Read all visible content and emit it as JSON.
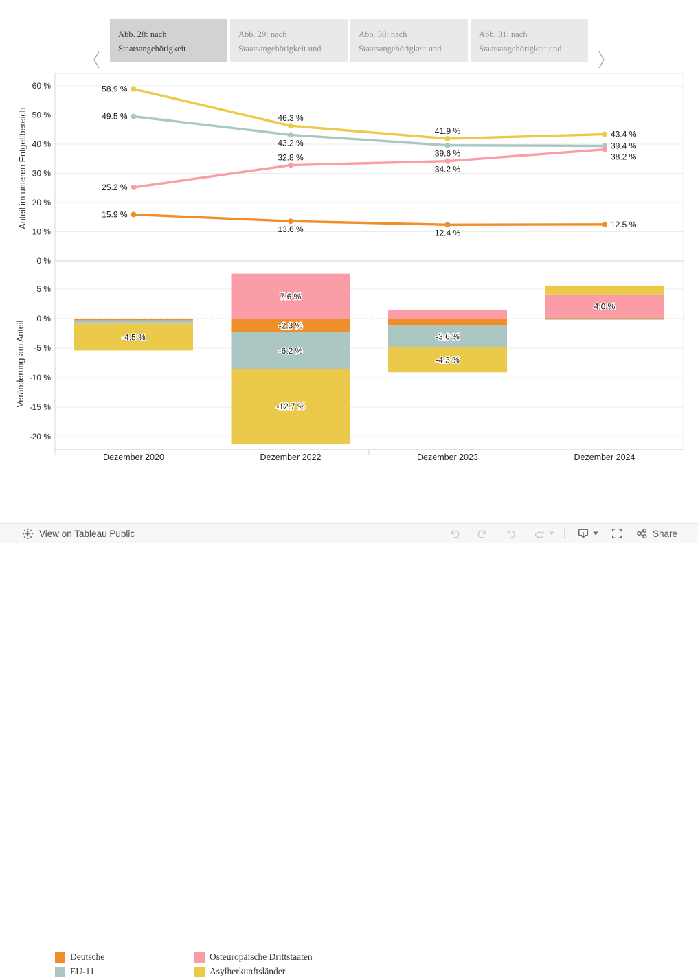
{
  "tabs": {
    "items": [
      {
        "line1": "Abb. 28: nach",
        "line2": "Staatsangehörigkeit",
        "active": true
      },
      {
        "line1": "Abb. 29: nach",
        "line2": "Staatsangehörigkeit und",
        "active": false
      },
      {
        "line1": "Abb. 30: nach",
        "line2": "Staatsangehörigkeit und",
        "active": false
      },
      {
        "line1": "Abb. 31: nach",
        "line2": "Staatsangehörigkeit und",
        "active": false
      }
    ]
  },
  "colors": {
    "deutsche": "#F08E2A",
    "eu11": "#ABC7C3",
    "osteuropaeische_drittstaaten": "#FA9DA6",
    "asylherkunftslaender": "#EBC94B",
    "active_tab_bg": "#d2d2d2",
    "inactive_tab_bg": "#e9e9e9"
  },
  "chart_data": [
    {
      "type": "line",
      "ylabel": "Anteil im unteren Entgeltbereich",
      "x": [
        "Dezember 2020",
        "Dezember 2022",
        "Dezember 2023",
        "Dezember 2024"
      ],
      "yticks": [
        0,
        10,
        20,
        30,
        40,
        50,
        60
      ],
      "ytick_suffix": " %",
      "ylim": [
        0,
        64
      ],
      "grid": true,
      "series": [
        {
          "name": "Deutsche",
          "color": "#F08E2A",
          "values": [
            15.9,
            13.6,
            12.4,
            12.5
          ],
          "labels": [
            "15.9 %",
            "13.6 %",
            "12.4 %",
            "12.5 %"
          ],
          "label_pos": [
            "left",
            "below",
            "below",
            "right"
          ]
        },
        {
          "name": "EU-11",
          "color": "#ABC7C3",
          "values": [
            49.5,
            43.2,
            39.6,
            39.4
          ],
          "labels": [
            "49.5 %",
            "43.2 %",
            "39.6 %",
            "39.4 %"
          ],
          "label_pos": [
            "left",
            "below",
            "below",
            "right"
          ]
        },
        {
          "name": "Osteuropäische Drittstaaten",
          "color": "#FA9DA6",
          "values": [
            25.2,
            32.8,
            34.2,
            38.2
          ],
          "labels": [
            "25.2 %",
            "32.8 %",
            "34.2 %",
            "38.2 %"
          ],
          "label_pos": [
            "left",
            "above",
            "below",
            "right-down"
          ]
        },
        {
          "name": "Asylherkunftsländer",
          "color": "#EBC94B",
          "values": [
            58.9,
            46.3,
            41.9,
            43.4
          ],
          "labels": [
            "58.9 %",
            "46.3 %",
            "41.9 %",
            "43.4 %"
          ],
          "label_pos": [
            "left",
            "above",
            "above",
            "right"
          ]
        }
      ]
    },
    {
      "type": "bar",
      "stacked": true,
      "ylabel": "Veränderung am Anteil",
      "categories": [
        "Dezember 2020",
        "Dezember 2022",
        "Dezember 2023",
        "Dezember 2024"
      ],
      "yticks": [
        5,
        0,
        -5,
        -10,
        -15,
        -20
      ],
      "ytick_suffix": " %",
      "ylim": [
        -22.5,
        8
      ],
      "zero_line": "dotted",
      "series": [
        {
          "name": "Deutsche",
          "color": "#F08E2A",
          "values": [
            -0.3,
            -2.3,
            -1.2,
            0.1
          ],
          "labels": [
            "",
            "-2.3 %",
            "",
            ""
          ]
        },
        {
          "name": "EU-11",
          "color": "#ABC7C3",
          "values": [
            -0.6,
            -6.2,
            -3.6,
            -0.2
          ],
          "labels": [
            "",
            "-6.2 %",
            "-3.6 %",
            ""
          ]
        },
        {
          "name": "Osteuropäische Drittstaaten",
          "color": "#FA9DA6",
          "values": [
            0,
            7.6,
            1.4,
            4.0
          ],
          "labels": [
            "",
            "7.6 %",
            "",
            "4.0 %"
          ]
        },
        {
          "name": "Asylherkunftsländer",
          "color": "#EBC94B",
          "values": [
            -4.5,
            -12.7,
            -4.3,
            1.5
          ],
          "labels": [
            "-4.5 %",
            "-12.7 %",
            "-4.3 %",
            ""
          ]
        }
      ]
    }
  ],
  "legend": {
    "items": [
      {
        "label": "Deutsche",
        "color": "#F08E2A"
      },
      {
        "label": "EU-11",
        "color": "#ABC7C3"
      },
      {
        "label": "Osteuropäische Drittstaaten",
        "color": "#FA9DA6"
      },
      {
        "label": "Asylherkunftsländer",
        "color": "#EBC94B"
      }
    ]
  },
  "toolbar": {
    "view_label": "View on Tableau Public",
    "share_label": "Share",
    "icons": [
      "undo-icon",
      "redo-icon",
      "revert-icon",
      "refresh-icon",
      "device-layouts-icon",
      "fullscreen-icon",
      "share-icon"
    ]
  }
}
